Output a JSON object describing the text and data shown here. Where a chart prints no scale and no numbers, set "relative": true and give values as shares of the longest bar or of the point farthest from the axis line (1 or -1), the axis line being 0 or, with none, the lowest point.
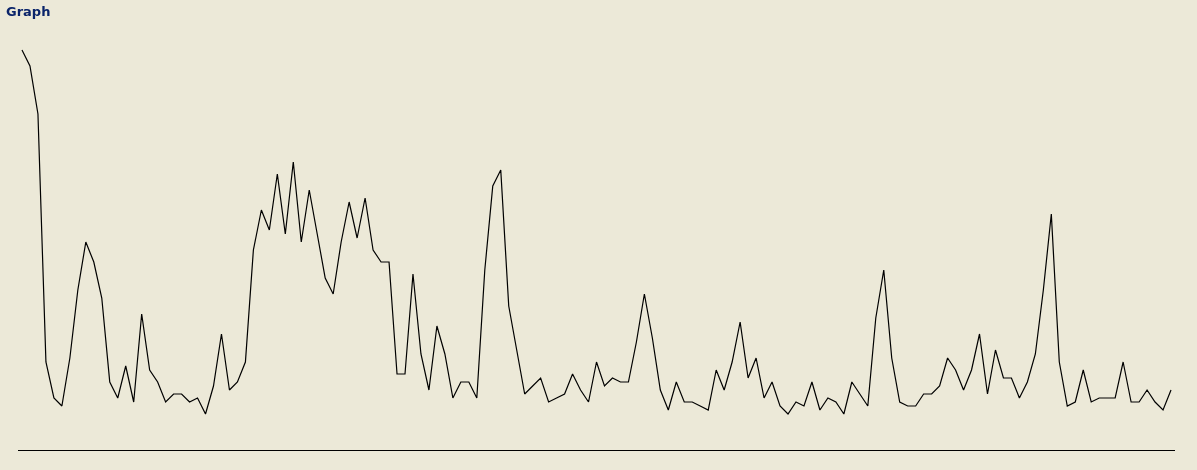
{
  "chart_data": {
    "type": "line",
    "title": "Graph",
    "relative": true,
    "marker": "none",
    "line_style": "solid",
    "categories": [
      null,
      null,
      null,
      null,
      null,
      null,
      null,
      null,
      null,
      null,
      null,
      null,
      null,
      null,
      null,
      null,
      null,
      null,
      null,
      null,
      null,
      null,
      null,
      null,
      null,
      null,
      null,
      null,
      null,
      null,
      null,
      null,
      null,
      null,
      null,
      null,
      null,
      null,
      null,
      null,
      null,
      null,
      null,
      null,
      null,
      null,
      null,
      null,
      null,
      null,
      null,
      null,
      null,
      null,
      null,
      null,
      null,
      null,
      null,
      null,
      null,
      null,
      null,
      null,
      null,
      null,
      null,
      null,
      null,
      null,
      null,
      null,
      null,
      null,
      null,
      null,
      null,
      null,
      null,
      null,
      null,
      null,
      null,
      null,
      null,
      null,
      null,
      null,
      null,
      null,
      null,
      null,
      null,
      null,
      null,
      null,
      null,
      null,
      null,
      null,
      null,
      null,
      null,
      null,
      null,
      null,
      null,
      null,
      null,
      null,
      null,
      null,
      null,
      null,
      null,
      null,
      null,
      null,
      null,
      null,
      null,
      null,
      null,
      null,
      null,
      null,
      null,
      null,
      null,
      null,
      null,
      null,
      null,
      null,
      null,
      null,
      null,
      null,
      null,
      null,
      null,
      null,
      null,
      null,
      null
    ],
    "series": [
      {
        "color": "#000000",
        "values": [
          1.0,
          0.96,
          0.84,
          0.22,
          0.13,
          0.11,
          0.23,
          0.4,
          0.52,
          0.47,
          0.38,
          0.17,
          0.13,
          0.21,
          0.12,
          0.34,
          0.2,
          0.17,
          0.12,
          0.14,
          0.14,
          0.12,
          0.13,
          0.09,
          0.16,
          0.29,
          0.15,
          0.17,
          0.22,
          0.5,
          0.6,
          0.55,
          0.69,
          0.54,
          0.72,
          0.52,
          0.65,
          0.54,
          0.43,
          0.39,
          0.52,
          0.62,
          0.53,
          0.63,
          0.5,
          0.47,
          0.47,
          0.19,
          0.19,
          0.44,
          0.24,
          0.15,
          0.31,
          0.24,
          0.13,
          0.17,
          0.17,
          0.13,
          0.45,
          0.66,
          0.7,
          0.36,
          0.25,
          0.14,
          0.16,
          0.18,
          0.12,
          0.13,
          0.14,
          0.19,
          0.15,
          0.12,
          0.22,
          0.16,
          0.18,
          0.17,
          0.17,
          0.27,
          0.39,
          0.28,
          0.15,
          0.1,
          0.17,
          0.12,
          0.12,
          0.11,
          0.1,
          0.2,
          0.15,
          0.22,
          0.32,
          0.18,
          0.23,
          0.13,
          0.17,
          0.11,
          0.09,
          0.12,
          0.11,
          0.17,
          0.1,
          0.13,
          0.12,
          0.09,
          0.17,
          0.14,
          0.11,
          0.33,
          0.45,
          0.23,
          0.12,
          0.11,
          0.11,
          0.14,
          0.14,
          0.16,
          0.23,
          0.2,
          0.15,
          0.2,
          0.29,
          0.14,
          0.25,
          0.18,
          0.18,
          0.13,
          0.17,
          0.24,
          0.4,
          0.59,
          0.22,
          0.11,
          0.12,
          0.2,
          0.12,
          0.13,
          0.13,
          0.13,
          0.22,
          0.12,
          0.12,
          0.15,
          0.12,
          0.1,
          0.15
        ]
      }
    ]
  }
}
